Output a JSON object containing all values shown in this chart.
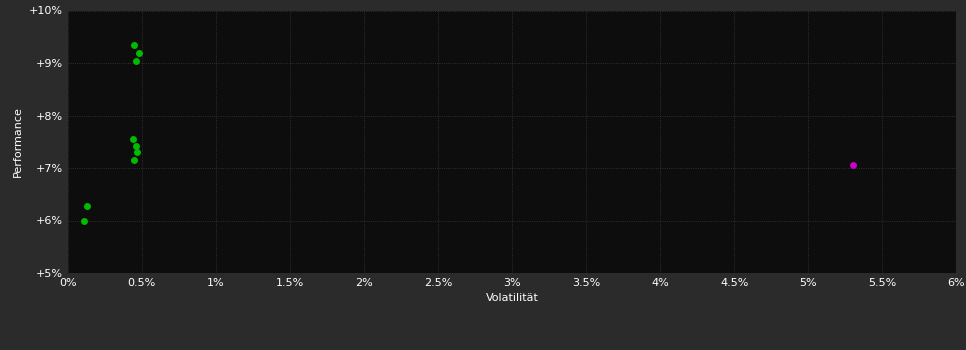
{
  "background_color": "#2b2b2b",
  "plot_bg_color": "#0d0d0d",
  "grid_color": "#3a3a3a",
  "text_color": "#ffffff",
  "xlabel": "Volatilität",
  "ylabel": "Performance",
  "xlim": [
    0,
    0.06
  ],
  "ylim": [
    0.05,
    0.1
  ],
  "xtick_vals": [
    0.0,
    0.005,
    0.01,
    0.015,
    0.02,
    0.025,
    0.03,
    0.035,
    0.04,
    0.045,
    0.05,
    0.055,
    0.06
  ],
  "xtick_labels": [
    "0%",
    "0.5%",
    "1%",
    "1.5%",
    "2%",
    "2.5%",
    "3%",
    "3.5%",
    "4%",
    "4.5%",
    "5%",
    "5.5%",
    "6%"
  ],
  "ytick_vals": [
    0.05,
    0.06,
    0.07,
    0.08,
    0.09,
    0.1
  ],
  "ytick_labels": [
    "+5%",
    "+6%",
    "+7%",
    "+8%",
    "+9%",
    "+10%"
  ],
  "green_points": [
    [
      0.0045,
      0.0935
    ],
    [
      0.0048,
      0.092
    ],
    [
      0.0046,
      0.0903
    ],
    [
      0.0044,
      0.0755
    ],
    [
      0.0046,
      0.0742
    ],
    [
      0.0047,
      0.073
    ],
    [
      0.0045,
      0.0715
    ],
    [
      0.0013,
      0.0628
    ],
    [
      0.0011,
      0.06
    ]
  ],
  "magenta_points": [
    [
      0.053,
      0.0705
    ]
  ],
  "green_color": "#00bb00",
  "magenta_color": "#cc00cc",
  "marker_size": 5,
  "xlabel_fontsize": 8,
  "ylabel_fontsize": 8,
  "tick_fontsize": 8
}
